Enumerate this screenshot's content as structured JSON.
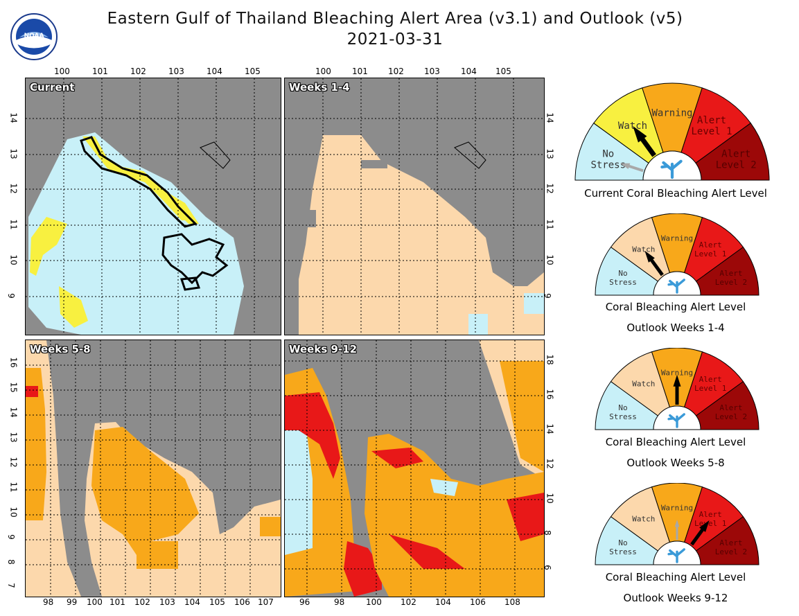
{
  "header": {
    "title_line1": "Eastern Gulf of Thailand Bleaching Alert Area (v3.1) and Outlook (v5)",
    "title_line2": "2021-03-31",
    "logo_text": "NOAA"
  },
  "colors": {
    "land": "#8c8c8c",
    "no_stress": "#c8f0f8",
    "watch": "#f8f040",
    "watch_outlook": "#fcd8ac",
    "warning": "#f8a81a",
    "alert1": "#e81818",
    "alert2": "#9c0808"
  },
  "maps": [
    {
      "label": "Current",
      "top_ticks": [
        "100",
        "101",
        "102",
        "103",
        "104",
        "105"
      ],
      "left_ticks": [
        "14",
        "13",
        "12",
        "11",
        "10",
        "9"
      ]
    },
    {
      "label": "Weeks 1-4",
      "top_ticks": [
        "100",
        "101",
        "102",
        "103",
        "104",
        "105"
      ],
      "right_ticks": [
        "14",
        "13",
        "12",
        "11",
        "10",
        "9"
      ]
    },
    {
      "label": "Weeks 5-8",
      "bottom_ticks": [
        "98",
        "99",
        "100",
        "101",
        "102",
        "103",
        "104",
        "105",
        "106",
        "107"
      ],
      "left_ticks": [
        "16",
        "15",
        "14",
        "13",
        "12",
        "11",
        "10",
        "9",
        "8",
        "7"
      ]
    },
    {
      "label": "Weeks 9-12",
      "bottom_ticks": [
        "96",
        "98",
        "100",
        "102",
        "104",
        "106",
        "108"
      ],
      "right_ticks": [
        "18",
        "16",
        "14",
        "12",
        "10",
        "8",
        "6"
      ]
    }
  ],
  "gauges": [
    {
      "segments": [
        "No Stress",
        "Watch",
        "Warning",
        "Alert Level 1",
        "Alert Level 2"
      ],
      "caption_lines": [
        "Current Coral Bleaching Alert Level"
      ],
      "current_level": "Watch",
      "previous_level": "No Stress"
    },
    {
      "segments": [
        "No Stress",
        "Watch",
        "Warning",
        "Alert Level 1",
        "Alert Level 2"
      ],
      "caption_lines": [
        "Coral Bleaching Alert Level",
        "Outlook Weeks 1-4"
      ],
      "current_level": "Watch"
    },
    {
      "segments": [
        "No Stress",
        "Watch",
        "Warning",
        "Alert Level 1",
        "Alert Level 2"
      ],
      "caption_lines": [
        "Coral Bleaching Alert Level",
        "Outlook Weeks 5-8"
      ],
      "current_level": "Warning"
    },
    {
      "segments": [
        "No Stress",
        "Watch",
        "Warning",
        "Alert Level 1",
        "Alert Level 2"
      ],
      "caption_lines": [
        "Coral Bleaching Alert Level",
        "Outlook Weeks 9-12"
      ],
      "current_level": "Alert Level 1",
      "previous_level": "Warning"
    }
  ]
}
